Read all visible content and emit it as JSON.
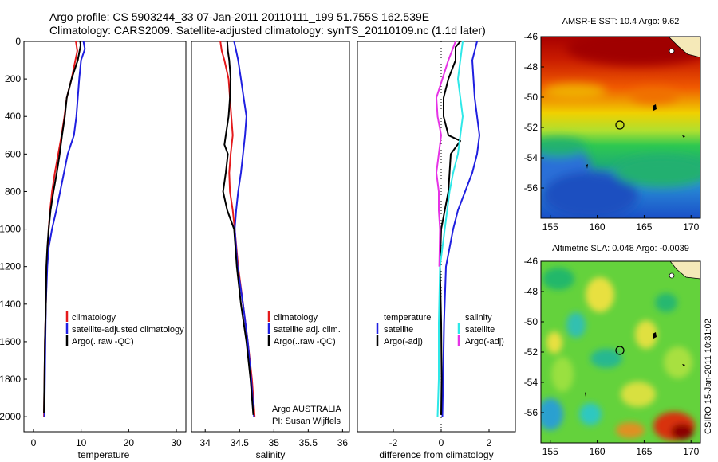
{
  "title_line1": "Argo profile: CS 5903244_33 07-Jan-2011 20110111_199 51.755S 162.539E",
  "title_line2": "Climatology: CARS2009. Satellite-adjusted climatology: synTS_20110109.nc (1.1d later)",
  "credit": "Argo AUSTRALIA",
  "pi": "PI: Susan Wijffels",
  "stamp": "CSIRO 15-Jan-2011 10:31:02",
  "colors": {
    "red": "#e41a1c",
    "blue": "#1f1fe0",
    "black": "#000000",
    "cyan": "#2ee8e8",
    "magenta": "#e633e6"
  },
  "chart_data": [
    {
      "type": "line",
      "name": "temperature-profile",
      "xlabel": "temperature",
      "ylabel": "",
      "xlim": [
        -2,
        32
      ],
      "ylim": [
        2080,
        0
      ],
      "xticks": [
        0,
        10,
        20,
        30
      ],
      "yticks": [
        0,
        200,
        400,
        600,
        800,
        1000,
        1200,
        1400,
        1600,
        1800,
        2000
      ],
      "legend": [
        "climatology",
        "satellite-adjusted climatology",
        "Argo(..raw -QC)"
      ],
      "series": [
        {
          "name": "climatology",
          "color": "red",
          "points": [
            [
              8.9,
              0
            ],
            [
              9.2,
              50
            ],
            [
              8.8,
              100
            ],
            [
              8.0,
              200
            ],
            [
              7.0,
              300
            ],
            [
              6.5,
              400
            ],
            [
              5.9,
              500
            ],
            [
              5.2,
              600
            ],
            [
              4.5,
              700
            ],
            [
              3.9,
              800
            ],
            [
              3.5,
              900
            ],
            [
              3.2,
              1000
            ],
            [
              3.0,
              1100
            ],
            [
              2.8,
              1200
            ],
            [
              2.6,
              1400
            ],
            [
              2.4,
              1600
            ],
            [
              2.3,
              1800
            ],
            [
              2.2,
              2000
            ]
          ]
        },
        {
          "name": "satellite-adjusted climatology",
          "color": "blue",
          "points": [
            [
              10.5,
              0
            ],
            [
              10.8,
              40
            ],
            [
              10.0,
              100
            ],
            [
              9.6,
              200
            ],
            [
              9.3,
              300
            ],
            [
              9.0,
              400
            ],
            [
              8.5,
              500
            ],
            [
              7.2,
              600
            ],
            [
              6.4,
              700
            ],
            [
              5.6,
              800
            ],
            [
              4.8,
              900
            ],
            [
              3.9,
              1000
            ],
            [
              3.2,
              1100
            ],
            [
              2.9,
              1200
            ],
            [
              2.6,
              1400
            ],
            [
              2.5,
              1600
            ],
            [
              2.4,
              1800
            ],
            [
              2.3,
              2000
            ]
          ]
        },
        {
          "name": "Argo(..raw -QC)",
          "color": "black",
          "points": [
            [
              9.8,
              0
            ],
            [
              9.9,
              20
            ],
            [
              9.3,
              100
            ],
            [
              8.0,
              200
            ],
            [
              7.0,
              300
            ],
            [
              6.6,
              400
            ],
            [
              6.0,
              500
            ],
            [
              5.5,
              600
            ],
            [
              4.9,
              700
            ],
            [
              4.2,
              800
            ],
            [
              3.6,
              900
            ],
            [
              3.2,
              1000
            ],
            [
              2.9,
              1100
            ],
            [
              2.7,
              1200
            ],
            [
              2.6,
              1400
            ],
            [
              2.4,
              1600
            ],
            [
              2.3,
              1800
            ],
            [
              2.2,
              1980
            ]
          ]
        }
      ]
    },
    {
      "type": "line",
      "name": "salinity-profile",
      "xlabel": "salinity",
      "ylabel": "",
      "xlim": [
        33.8,
        36.1
      ],
      "ylim": [
        2080,
        0
      ],
      "xticks": [
        34,
        34.5,
        35,
        35.5,
        36
      ],
      "legend": [
        "climatology",
        "satellite adj. clim.",
        "Argo(..raw -QC)"
      ],
      "series": [
        {
          "name": "climatology",
          "color": "red",
          "points": [
            [
              34.22,
              0
            ],
            [
              34.24,
              50
            ],
            [
              34.28,
              100
            ],
            [
              34.34,
              200
            ],
            [
              34.36,
              300
            ],
            [
              34.38,
              400
            ],
            [
              34.4,
              500
            ],
            [
              34.37,
              600
            ],
            [
              34.35,
              700
            ],
            [
              34.36,
              800
            ],
            [
              34.4,
              900
            ],
            [
              34.43,
              1000
            ],
            [
              34.48,
              1200
            ],
            [
              34.55,
              1400
            ],
            [
              34.62,
              1600
            ],
            [
              34.68,
              1800
            ],
            [
              34.72,
              2000
            ]
          ]
        },
        {
          "name": "satellite adj. clim.",
          "color": "blue",
          "points": [
            [
              34.42,
              0
            ],
            [
              34.45,
              50
            ],
            [
              34.48,
              100
            ],
            [
              34.52,
              200
            ],
            [
              34.56,
              300
            ],
            [
              34.6,
              400
            ],
            [
              34.58,
              500
            ],
            [
              34.55,
              600
            ],
            [
              34.52,
              700
            ],
            [
              34.48,
              800
            ],
            [
              34.45,
              900
            ],
            [
              34.43,
              1000
            ],
            [
              34.47,
              1200
            ],
            [
              34.55,
              1400
            ],
            [
              34.62,
              1600
            ],
            [
              34.67,
              1800
            ],
            [
              34.71,
              2000
            ]
          ]
        },
        {
          "name": "Argo(..raw -QC)",
          "color": "black",
          "points": [
            [
              34.32,
              0
            ],
            [
              34.33,
              50
            ],
            [
              34.35,
              100
            ],
            [
              34.37,
              200
            ],
            [
              34.36,
              300
            ],
            [
              34.34,
              400
            ],
            [
              34.3,
              500
            ],
            [
              34.28,
              550
            ],
            [
              34.33,
              600
            ],
            [
              34.3,
              700
            ],
            [
              34.26,
              800
            ],
            [
              34.32,
              900
            ],
            [
              34.42,
              1000
            ],
            [
              34.46,
              1200
            ],
            [
              34.52,
              1400
            ],
            [
              34.6,
              1600
            ],
            [
              34.66,
              1800
            ],
            [
              34.7,
              1990
            ]
          ]
        }
      ]
    },
    {
      "type": "line",
      "name": "difference-profile",
      "xlabel": "difference from climatology",
      "ylabel": "",
      "xlim": [
        -3.5,
        3.1
      ],
      "ylim": [
        2080,
        0
      ],
      "xticks": [
        -2,
        0,
        2
      ],
      "legend_left_title": "temperature",
      "legend_right_title": "salinity",
      "legend_left": [
        "satellite",
        "Argo(-adj)"
      ],
      "legend_right": [
        "satellite",
        "Argo(-adj)"
      ],
      "series": [
        {
          "name": "temperature satellite",
          "color": "blue",
          "points": [
            [
              1.5,
              0
            ],
            [
              1.3,
              100
            ],
            [
              1.4,
              300
            ],
            [
              1.6,
              500
            ],
            [
              1.5,
              600
            ],
            [
              1.3,
              700
            ],
            [
              1.0,
              800
            ],
            [
              0.7,
              900
            ],
            [
              0.5,
              1000
            ],
            [
              0.35,
              1100
            ],
            [
              0.2,
              1200
            ],
            [
              0.12,
              1500
            ],
            [
              0.08,
              1800
            ],
            [
              0.05,
              2000
            ]
          ]
        },
        {
          "name": "temperature Argo(-adj)",
          "color": "black",
          "points": [
            [
              0.8,
              0
            ],
            [
              0.6,
              30
            ],
            [
              0.6,
              100
            ],
            [
              0.3,
              200
            ],
            [
              0.1,
              300
            ],
            [
              0.1,
              400
            ],
            [
              0.3,
              500
            ],
            [
              0.8,
              530
            ],
            [
              0.4,
              600
            ],
            [
              0.35,
              700
            ],
            [
              0.3,
              800
            ],
            [
              0.15,
              900
            ],
            [
              0.0,
              1000
            ],
            [
              -0.05,
              1200
            ],
            [
              0.0,
              1500
            ],
            [
              0.02,
              1800
            ],
            [
              0.0,
              1990
            ]
          ]
        },
        {
          "name": "salinity satellite",
          "color": "cyan",
          "points": [
            [
              0.9,
              0
            ],
            [
              0.7,
              200
            ],
            [
              0.9,
              400
            ],
            [
              0.8,
              500
            ],
            [
              0.7,
              600
            ],
            [
              0.5,
              700
            ],
            [
              0.35,
              800
            ],
            [
              0.15,
              1000
            ],
            [
              -0.05,
              1200
            ],
            [
              -0.1,
              1500
            ],
            [
              -0.1,
              1800
            ],
            [
              -0.15,
              2000
            ]
          ]
        },
        {
          "name": "salinity Argo(-adj)",
          "color": "magenta",
          "points": [
            [
              0.6,
              0
            ],
            [
              0.3,
              100
            ],
            [
              -0.2,
              300
            ],
            [
              -0.15,
              400
            ],
            [
              0.0,
              500
            ],
            [
              -0.1,
              600
            ],
            [
              -0.2,
              700
            ],
            [
              -0.1,
              800
            ],
            [
              -0.1,
              900
            ],
            [
              -0.05,
              1000
            ],
            [
              -0.08,
              1200
            ]
          ]
        }
      ]
    },
    {
      "type": "heatmap",
      "name": "sst-map",
      "title": "AMSR-E SST: 10.4 Argo: 9.62",
      "xlim": [
        154,
        171
      ],
      "ylim": [
        -58,
        -46
      ],
      "xticks": [
        155,
        160,
        165,
        170
      ],
      "yticks": [
        -46,
        -48,
        -50,
        -52,
        -54,
        -56
      ],
      "marker": {
        "lon": 162.5,
        "lat": -51.8
      }
    },
    {
      "type": "heatmap",
      "name": "sla-map",
      "title": "Altimetric SLA: 0.048 Argo: -0.0039",
      "xlim": [
        154,
        171
      ],
      "ylim": [
        -58,
        -46
      ],
      "xticks": [
        155,
        160,
        165,
        170
      ],
      "yticks": [
        -46,
        -48,
        -50,
        -52,
        -54,
        -56
      ],
      "marker": {
        "lon": 162.5,
        "lat": -51.8
      }
    }
  ]
}
